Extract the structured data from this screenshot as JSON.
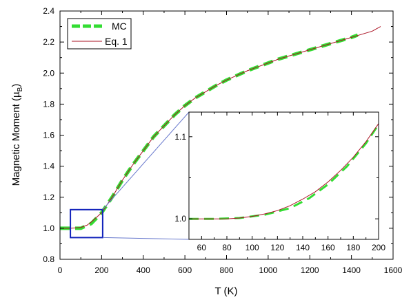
{
  "chart_data": [
    {
      "type": "line",
      "panel": "main",
      "xlabel": "T (K)",
      "ylabel": "Magnetic Moment (",
      "ylabel_unit_glyph": "µ",
      "ylabel_unit_sub": "B",
      "ylabel_close": ")",
      "xlim": [
        0,
        1600
      ],
      "ylim": [
        0.8,
        2.4
      ],
      "xticks": [
        0,
        200,
        400,
        600,
        800,
        1000,
        1200,
        1400,
        1600
      ],
      "yticks": [
        0.8,
        1.0,
        1.2,
        1.4,
        1.6,
        1.8,
        2.0,
        2.2,
        2.4
      ],
      "legend": {
        "placement": "top-left"
      },
      "series": [
        {
          "name": "MC",
          "style": "dashed",
          "color": "#33dd33",
          "x": [
            0,
            100,
            150,
            200,
            250,
            300,
            350,
            400,
            450,
            500,
            550,
            600,
            650,
            700,
            750,
            800,
            850,
            900,
            950,
            1000,
            1050,
            1100,
            1150,
            1200,
            1250,
            1300,
            1350,
            1400,
            1430
          ],
          "y": [
            1.0,
            1.0,
            1.03,
            1.1,
            1.2,
            1.31,
            1.41,
            1.5,
            1.59,
            1.66,
            1.73,
            1.79,
            1.84,
            1.88,
            1.92,
            1.955,
            1.985,
            2.015,
            2.04,
            2.065,
            2.09,
            2.11,
            2.13,
            2.15,
            2.17,
            2.19,
            2.21,
            2.23,
            2.245
          ]
        },
        {
          "name": "Eq. 1",
          "style": "solid",
          "color": "#aa1122",
          "x": [
            0,
            50,
            100,
            130,
            150,
            200,
            250,
            300,
            350,
            400,
            450,
            500,
            550,
            600,
            650,
            700,
            750,
            800,
            850,
            900,
            950,
            1000,
            1050,
            1100,
            1150,
            1200,
            1250,
            1300,
            1350,
            1400,
            1450,
            1500,
            1540
          ],
          "y": [
            1.0,
            1.0,
            1.005,
            1.02,
            1.04,
            1.1,
            1.2,
            1.31,
            1.41,
            1.5,
            1.59,
            1.66,
            1.73,
            1.79,
            1.84,
            1.88,
            1.92,
            1.955,
            1.985,
            2.015,
            2.04,
            2.065,
            2.09,
            2.11,
            2.13,
            2.15,
            2.17,
            2.19,
            2.21,
            2.23,
            2.25,
            2.27,
            2.3
          ]
        }
      ],
      "zoom_box": {
        "xlim": [
          50,
          205
        ],
        "ylim": [
          0.94,
          1.12
        ]
      }
    },
    {
      "type": "line",
      "panel": "inset",
      "xlim": [
        50,
        200
      ],
      "ylim": [
        0.975,
        1.13
      ],
      "xticks": [
        60,
        80,
        100,
        120,
        140,
        160,
        180,
        200
      ],
      "yticks": [
        1.0,
        1.1
      ],
      "ytick_labels": [
        "1.0",
        "1.1"
      ],
      "series": [
        {
          "name": "MC",
          "style": "dashed",
          "color": "#33dd33",
          "x": [
            50,
            70,
            90,
            110,
            130,
            145,
            160,
            175,
            190,
            200
          ],
          "y": [
            1.0,
            1.0,
            1.001,
            1.005,
            1.013,
            1.025,
            1.042,
            1.064,
            1.092,
            1.115
          ]
        },
        {
          "name": "Eq. 1",
          "style": "solid",
          "color": "#aa1122",
          "x": [
            50,
            60,
            70,
            80,
            90,
            100,
            110,
            120,
            130,
            140,
            150,
            160,
            170,
            180,
            190,
            200
          ],
          "y": [
            1.0,
            1.0,
            1.0,
            1.0,
            1.001,
            1.003,
            1.006,
            1.01,
            1.016,
            1.024,
            1.033,
            1.045,
            1.059,
            1.075,
            1.094,
            1.116
          ]
        }
      ]
    }
  ]
}
